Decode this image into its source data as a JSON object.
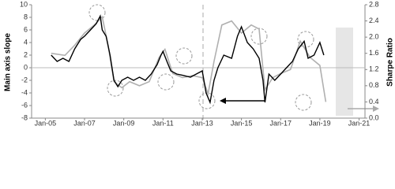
{
  "chart_data": {
    "type": "line",
    "ylabel": "Main axis slope",
    "y2label": "Sharpe Ratio",
    "xlim": [
      2004.3,
      2021.3
    ],
    "xticks": [
      {
        "value": 2005,
        "label": "Jan-05"
      },
      {
        "value": 2007,
        "label": "Jan-07"
      },
      {
        "value": 2009,
        "label": "Jan-09"
      },
      {
        "value": 2011,
        "label": "Jan-11"
      },
      {
        "value": 2013,
        "label": "Jan-13"
      },
      {
        "value": 2015,
        "label": "Jan-15"
      },
      {
        "value": 2017,
        "label": "Jan-17"
      },
      {
        "value": 2019,
        "label": "Jan-19"
      },
      {
        "value": 2021,
        "label": "Jan-21"
      }
    ],
    "ylim": [
      -8,
      10
    ],
    "yticks": [
      10,
      8,
      6,
      4,
      2,
      0,
      -2,
      -4,
      -6,
      -8
    ],
    "y2lim": [
      0,
      2.8
    ],
    "y2ticks": [
      2.8,
      2.4,
      {
        "value": 2,
        "label": "2.0"
      },
      1.6,
      1.2,
      0.8,
      0.4,
      {
        "value": 0,
        "label": "0.0"
      }
    ],
    "series": [
      {
        "name": "Main axis slope",
        "color": "#000000",
        "x": [
          2005.3,
          2005.6,
          2005.9,
          2006.2,
          2006.5,
          2006.8,
          2007.0,
          2007.3,
          2007.6,
          2007.8,
          2007.9,
          2008.1,
          2008.3,
          2008.5,
          2008.7,
          2008.9,
          2009.2,
          2009.5,
          2009.8,
          2010.1,
          2010.4,
          2010.7,
          2010.9,
          2011.0,
          2011.2,
          2011.4,
          2011.7,
          2012.0,
          2012.4,
          2012.7,
          2013.0,
          2013.2,
          2013.4,
          2013.6,
          2013.8,
          2014.1,
          2014.5,
          2014.8,
          2015.0,
          2015.3,
          2015.6,
          2015.9,
          2016.1,
          2016.2,
          2016.4,
          2016.7,
          2017.0,
          2017.3,
          2017.6,
          2017.9,
          2018.2,
          2018.4,
          2018.7,
          2019.0,
          2019.2
        ],
        "values": [
          2,
          1,
          1.5,
          1,
          3,
          4.5,
          5,
          6,
          7,
          8.2,
          6,
          5,
          2,
          -2,
          -3,
          -2,
          -1.5,
          -2,
          -1.5,
          -2,
          -1,
          0.5,
          2,
          2.6,
          1,
          -0.5,
          -1,
          -1.2,
          -1.5,
          -1,
          -0.5,
          -4,
          -5.5,
          -2,
          0,
          2,
          1.5,
          5,
          6.5,
          4,
          3,
          1.5,
          -2,
          -5.5,
          -1,
          -2,
          -1,
          0,
          1,
          3,
          4.2,
          1.5,
          2,
          4,
          2
        ]
      },
      {
        "name": "Sharpe Ratio",
        "color": "#b0b0b0",
        "axis": "y2",
        "x": [
          2005.3,
          2006.0,
          2006.5,
          2007.0,
          2007.5,
          2007.9,
          2008.2,
          2008.5,
          2008.9,
          2009.3,
          2009.8,
          2010.3,
          2010.8,
          2011.1,
          2011.5,
          2012.0,
          2012.5,
          2013.0,
          2013.3,
          2013.6,
          2014.0,
          2014.5,
          2015.0,
          2015.5,
          2015.9,
          2016.2,
          2016.6,
          2017.0,
          2017.5,
          2018.0,
          2018.5,
          2019.0,
          2019.3
        ],
        "values": [
          1.6,
          1.55,
          1.8,
          2.1,
          2.3,
          2.5,
          1.8,
          0.9,
          0.75,
          0.9,
          0.8,
          0.9,
          1.5,
          1.7,
          1.1,
          1.0,
          1.05,
          1.0,
          0.6,
          1.4,
          2.3,
          2.4,
          2.1,
          2.3,
          2.2,
          0.7,
          1.0,
          1.1,
          1.2,
          1.9,
          1.5,
          1.3,
          0.4
        ]
      }
    ]
  }
}
